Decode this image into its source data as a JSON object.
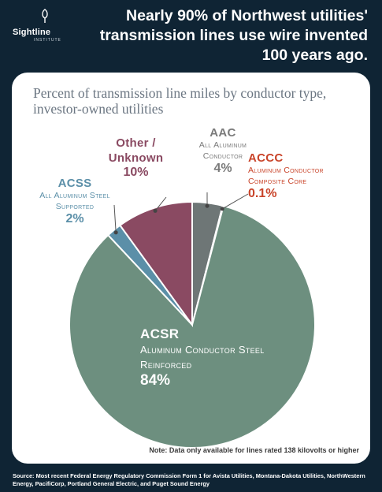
{
  "brand": {
    "name": "Sightline",
    "sub": "INSTITUTE"
  },
  "headline": "Nearly 90% of Northwest utilities' transmission lines use wire invented 100 years ago.",
  "note": "Note: Data only available for lines rated 138 kilovolts or higher",
  "source": "Source: Most recent Federal Energy Regulatory Commission Form 1 for Avista Utilities, Montana-Dakota Utilities, NorthWestern Energy, PacifiCorp, Portland General Electric, and Puget Sound Energy",
  "chart_data": {
    "type": "pie",
    "title": "Percent of transmission line miles by conductor type, investor-owned utilities",
    "slices": [
      {
        "id": "aac",
        "name": "AAC",
        "desc": "All Aluminum Conductor",
        "value": 4,
        "label": "4%",
        "color": "#6e7676",
        "label_color": "#7a7a7a"
      },
      {
        "id": "accc",
        "name": "ACCC",
        "desc": "Aluminum Conductor Composite Core",
        "value": 0.1,
        "label": "0.1%",
        "color": "#d04a2d",
        "label_color": "#c9442a"
      },
      {
        "id": "acsr",
        "name": "ACSR",
        "desc": "Aluminum Conductor Steel Reinforced",
        "value": 84,
        "label": "84%",
        "color": "#6d8f7f",
        "label_color": "#ffffff"
      },
      {
        "id": "acss",
        "name": "ACSS",
        "desc": "All Aluminum Steel Supported",
        "value": 2,
        "label": "2%",
        "color": "#5b8fa8",
        "label_color": "#5b8fa8"
      },
      {
        "id": "other",
        "name": "Other / Unknown",
        "desc": "",
        "value": 10,
        "label": "10%",
        "color": "#8a4a62",
        "label_color": "#8a4a62"
      }
    ]
  }
}
